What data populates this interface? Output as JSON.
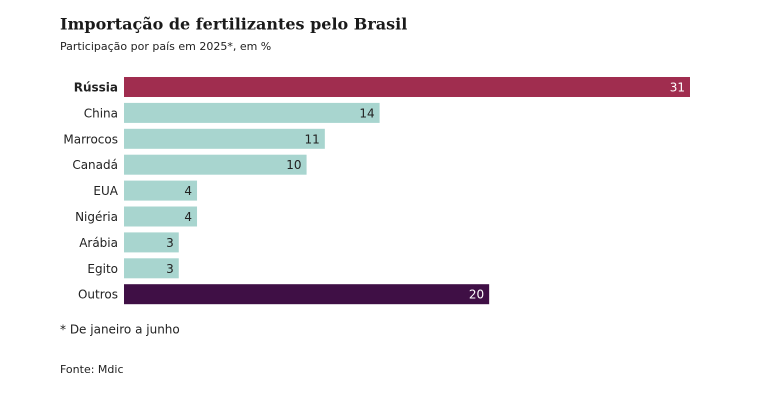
{
  "chart_data": {
    "type": "bar",
    "orientation": "horizontal",
    "title": "Importação de fertilizantes pelo Brasil",
    "subtitle": "Participação por país em 2025*, em %",
    "categories": [
      "Rússia",
      "China",
      "Marrocos",
      "Canadá",
      "EUA",
      "Nigéria",
      "Arábia",
      "Egito",
      "Outros"
    ],
    "values": [
      31,
      14,
      11,
      10,
      4,
      4,
      3,
      3,
      20
    ],
    "colors": [
      "#a02d4f",
      "#a8d5cf",
      "#a8d5cf",
      "#a8d5cf",
      "#a8d5cf",
      "#a8d5cf",
      "#a8d5cf",
      "#a8d5cf",
      "#3f0f45"
    ],
    "footnote": "* De janeiro a junho",
    "source": "Fonte: Mdic"
  }
}
